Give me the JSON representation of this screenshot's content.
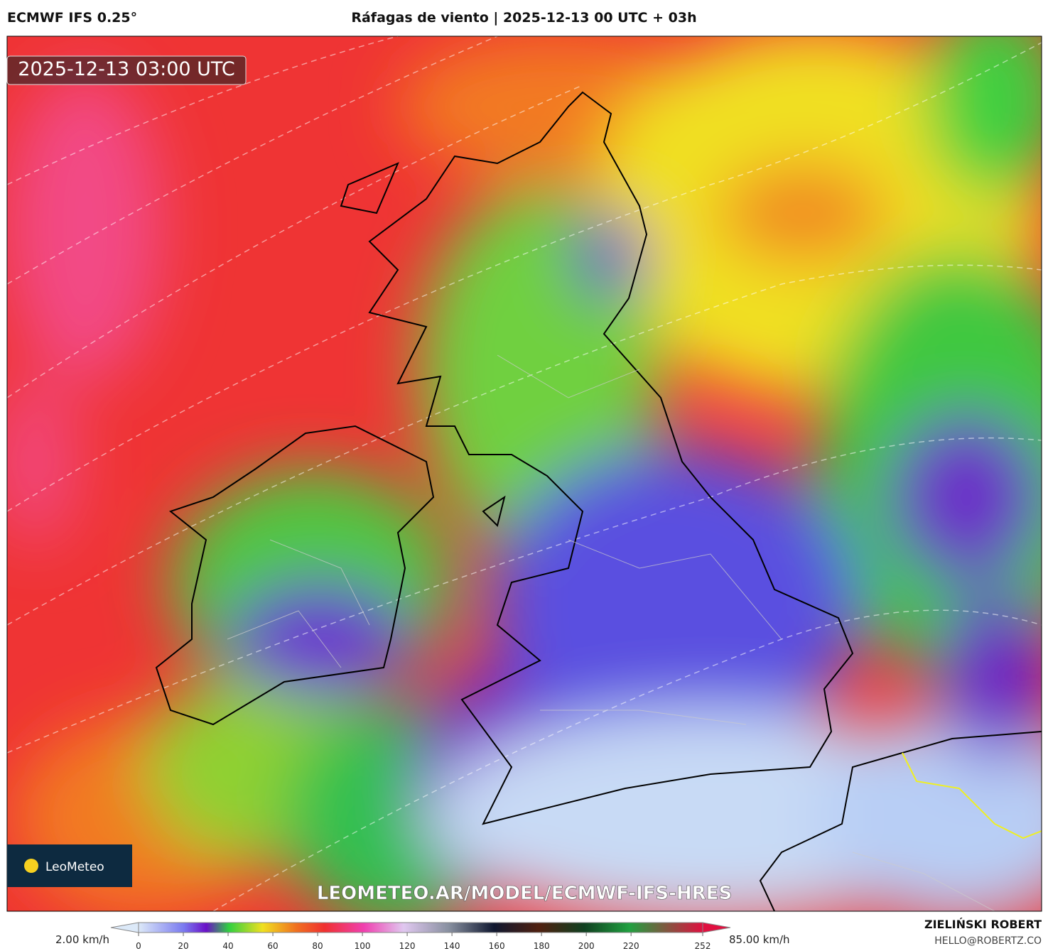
{
  "header": {
    "model": "ECMWF IFS 0.25°",
    "title": "Ráfagas de viento | 2025-12-13 00 UTC + 03h"
  },
  "map": {
    "timestamp": "2025-12-13 03:00 UTC",
    "watermark": "LEOMETEO.AR/MODEL/ECMWF-IFS-HRES",
    "logo": "LeoMeteo"
  },
  "colorbar": {
    "min_label": "2.00 km/h",
    "max_label": "85.00 km/h",
    "ticks": [
      0,
      20,
      40,
      60,
      80,
      100,
      120,
      140,
      160,
      180,
      200,
      220,
      252
    ]
  },
  "footer": {
    "author": "ZIELIŃSKI ROBERT",
    "email": "HELLO@ROBERTZ.CO"
  }
}
